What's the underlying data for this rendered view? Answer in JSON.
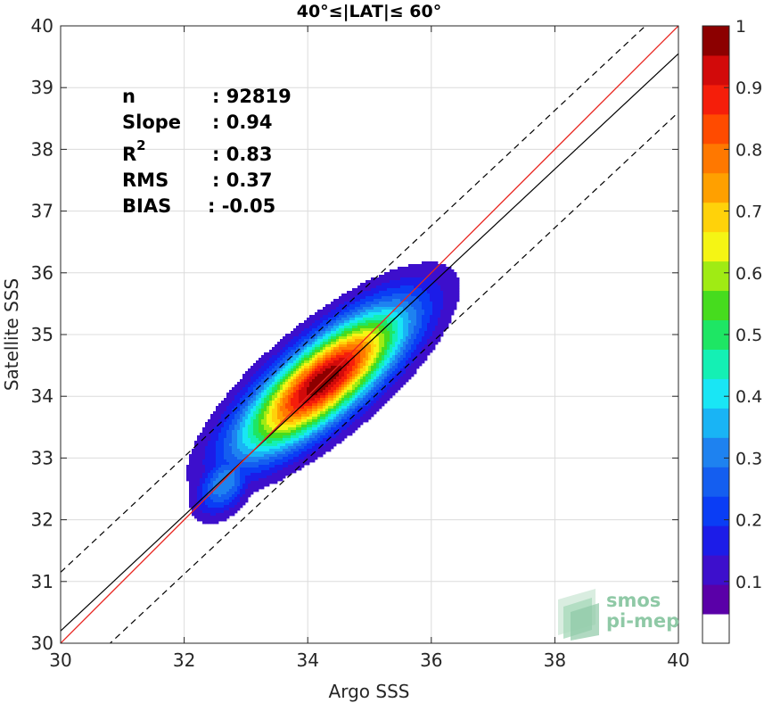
{
  "chart_data": {
    "type": "contour-scatter",
    "title": "40°≤|LAT|≤ 60°",
    "xlabel": "Argo SSS",
    "ylabel": "Satellite SSS",
    "xlim": [
      30,
      40
    ],
    "ylim": [
      30,
      40
    ],
    "xticks": [
      "30",
      "32",
      "34",
      "36",
      "38",
      "40"
    ],
    "yticks": [
      "30",
      "31",
      "32",
      "33",
      "34",
      "35",
      "36",
      "37",
      "38",
      "39",
      "40"
    ],
    "grid": true,
    "stats": [
      {
        "label": "n",
        "value": ": 92819"
      },
      {
        "label": "Slope",
        "value": ": 0.94"
      },
      {
        "label": "R",
        "sup": "2",
        "value": ": 0.83"
      },
      {
        "label": "RMS",
        "value": ": 0.37"
      },
      {
        "label": "BIAS",
        "value": ": -0.05"
      }
    ],
    "lines": {
      "identity": {
        "color": "#e8251f",
        "x": [
          30,
          40
        ],
        "y": [
          30,
          40
        ]
      },
      "regression": {
        "color": "#000000",
        "x": [
          30,
          40
        ],
        "y": [
          30.2,
          39.55
        ]
      },
      "upper_bound": {
        "color": "#000000",
        "dash": true,
        "x": [
          30,
          40
        ],
        "y": [
          31.15,
          40.5
        ]
      },
      "lower_bound": {
        "color": "#000000",
        "dash": true,
        "x": [
          30,
          40
        ],
        "y": [
          29.25,
          38.6
        ]
      }
    },
    "density_peaks": [
      {
        "cx": 34.25,
        "cy": 34.25,
        "angle_deg": 40,
        "sx": 1.6,
        "sy": 0.55,
        "peak": 1.0
      },
      {
        "cx": 32.65,
        "cy": 32.6,
        "angle_deg": 55,
        "sx": 0.55,
        "sy": 0.35,
        "peak": 0.3
      }
    ],
    "contour_levels": [
      0.05,
      0.1,
      0.15,
      0.2,
      0.25,
      0.3,
      0.35,
      0.4,
      0.45,
      0.5,
      0.55,
      0.6,
      0.65,
      0.7,
      0.75,
      0.8,
      0.85,
      0.9,
      0.95
    ],
    "colorbar": {
      "ticks": [
        "0.1",
        "0.2",
        "0.3",
        "0.4",
        "0.5",
        "0.6",
        "0.7",
        "0.8",
        "0.9",
        "1"
      ],
      "tick_values": [
        0.1,
        0.2,
        0.3,
        0.4,
        0.5,
        0.6,
        0.7,
        0.8,
        0.9,
        1.0
      ],
      "colors": [
        "#ffffff",
        "#5a00a8",
        "#3d0fcc",
        "#1c1ce8",
        "#0a3df5",
        "#145ef0",
        "#1e82f0",
        "#19b4f5",
        "#19e6f5",
        "#14f0b4",
        "#1ee664",
        "#46dc1e",
        "#a0eb14",
        "#f5f514",
        "#ffd20a",
        "#ffa000",
        "#ff7800",
        "#ff4b00",
        "#f51e0a",
        "#d20a0a",
        "#8c0000"
      ]
    }
  },
  "logo": {
    "line1": "smos",
    "line2": "pi-mep"
  }
}
